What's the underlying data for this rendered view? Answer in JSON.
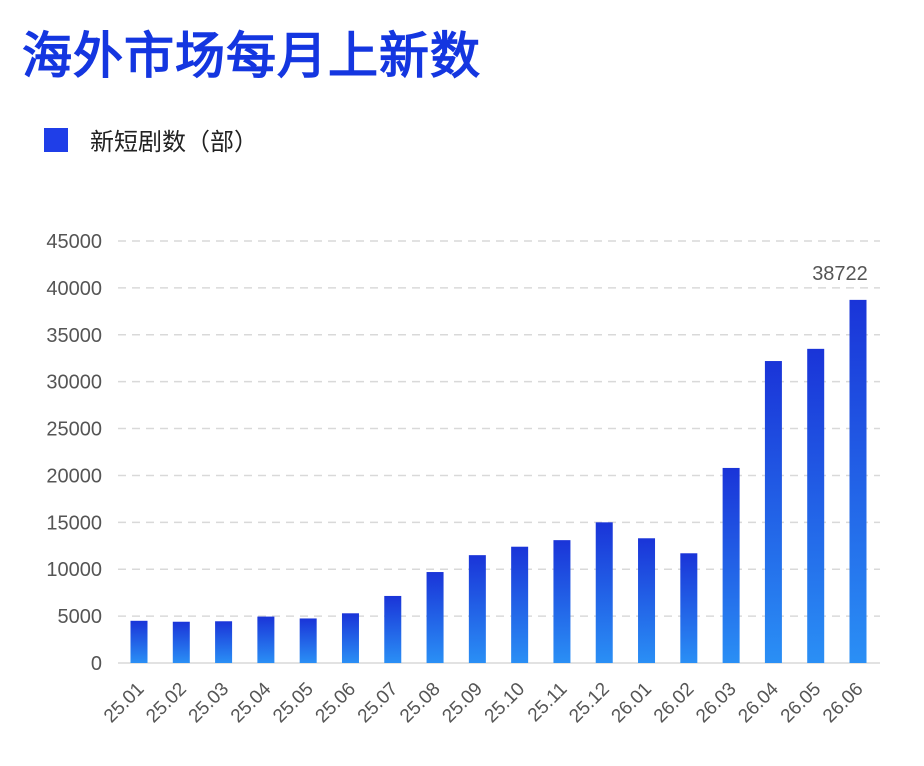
{
  "title": "海外市场每月上新数",
  "legend": {
    "label": "新短剧数（部）",
    "color": "#1f3ee8"
  },
  "colors": {
    "bar_top": "#1a34d8",
    "bar_bottom": "#2a8ff5",
    "grid": "#d9d9d9",
    "axis_text": "#555555"
  },
  "chart_data": {
    "type": "bar",
    "title": "海外市场每月上新数",
    "xlabel": "",
    "ylabel": "",
    "ylim": [
      0,
      45000
    ],
    "yticks": [
      0,
      5000,
      10000,
      15000,
      20000,
      25000,
      30000,
      35000,
      40000,
      45000
    ],
    "grid": true,
    "legend_position": "top-left",
    "categories": [
      "25.01",
      "25.02",
      "25.03",
      "25.04",
      "25.05",
      "25.06",
      "25.07",
      "25.08",
      "25.09",
      "25.10",
      "25.11",
      "25.12",
      "26.01",
      "26.02",
      "26.03",
      "26.04",
      "26.05",
      "26.06"
    ],
    "series": [
      {
        "name": "新短剧数（部）",
        "values": [
          4500,
          4400,
          4450,
          4950,
          4750,
          5300,
          7150,
          9700,
          11500,
          12400,
          13100,
          15000,
          13300,
          11700,
          20800,
          32200,
          33500,
          38722
        ]
      }
    ],
    "data_labels": [
      {
        "category": "26.06",
        "text": "38722"
      }
    ]
  }
}
